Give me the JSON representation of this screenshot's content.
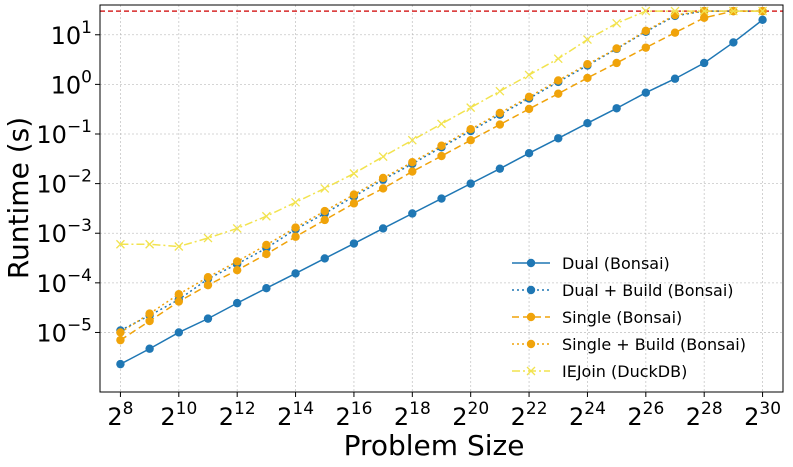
{
  "chart_data": {
    "type": "line",
    "title": "",
    "xlabel": "Problem Size",
    "ylabel": "Runtime (s)",
    "x_scale": "log2",
    "y_scale": "log10",
    "x_exponents": [
      8,
      9,
      10,
      11,
      12,
      13,
      14,
      15,
      16,
      17,
      18,
      19,
      20,
      21,
      22,
      23,
      24,
      25,
      26,
      27,
      28,
      29,
      30
    ],
    "xlim_exp": [
      7.3,
      30.7
    ],
    "ylim_exp": [
      -6.2,
      1.6
    ],
    "x_ticks": [
      {
        "exp": 8,
        "base": "2",
        "sup": "8"
      },
      {
        "exp": 10,
        "base": "2",
        "sup": "10"
      },
      {
        "exp": 12,
        "base": "2",
        "sup": "12"
      },
      {
        "exp": 14,
        "base": "2",
        "sup": "14"
      },
      {
        "exp": 16,
        "base": "2",
        "sup": "16"
      },
      {
        "exp": 18,
        "base": "2",
        "sup": "18"
      },
      {
        "exp": 20,
        "base": "2",
        "sup": "20"
      },
      {
        "exp": 22,
        "base": "2",
        "sup": "22"
      },
      {
        "exp": 24,
        "base": "2",
        "sup": "24"
      },
      {
        "exp": 26,
        "base": "2",
        "sup": "26"
      },
      {
        "exp": 28,
        "base": "2",
        "sup": "28"
      },
      {
        "exp": 30,
        "base": "2",
        "sup": "30"
      }
    ],
    "y_ticks": [
      {
        "exp": -5,
        "base": "10",
        "sup": "−5"
      },
      {
        "exp": -4,
        "base": "10",
        "sup": "−4"
      },
      {
        "exp": -3,
        "base": "10",
        "sup": "−3"
      },
      {
        "exp": -2,
        "base": "10",
        "sup": "−2"
      },
      {
        "exp": -1,
        "base": "10",
        "sup": "−1"
      },
      {
        "exp": 0,
        "base": "10",
        "sup": "0"
      },
      {
        "exp": 1,
        "base": "10",
        "sup": "1"
      }
    ],
    "grid": true,
    "timeout_line": {
      "value": 30,
      "color": "#d62728",
      "style": "dashed"
    },
    "legend_position": "lower-right",
    "series": [
      {
        "name": "Dual (Bonsai)",
        "color": "#1f77b4",
        "line_style": "solid",
        "marker": "circle",
        "values": [
          2.3e-06,
          4.7e-06,
          1e-05,
          1.9e-05,
          3.9e-05,
          7.8e-05,
          0.000155,
          0.00031,
          0.00062,
          0.00125,
          0.0025,
          0.005,
          0.01,
          0.02,
          0.041,
          0.082,
          0.165,
          0.33,
          0.68,
          1.3,
          2.7,
          7.0,
          20
        ]
      },
      {
        "name": "Dual + Build (Bonsai)",
        "color": "#1f77b4",
        "line_style": "dotted",
        "marker": "circle",
        "values": [
          1.1e-05,
          2.2e-05,
          4.6e-05,
          0.00012,
          0.00024,
          0.0005,
          0.0012,
          0.0025,
          0.0055,
          0.012,
          0.025,
          0.054,
          0.115,
          0.245,
          0.52,
          1.12,
          2.4,
          5.2,
          11.5,
          24,
          30,
          30,
          30
        ]
      },
      {
        "name": "Single (Bonsai)",
        "color": "#f0a30a",
        "line_style": "dashed",
        "marker": "circle",
        "values": [
          7e-06,
          1.7e-05,
          4.2e-05,
          9e-05,
          0.00018,
          0.00038,
          0.00085,
          0.00185,
          0.004,
          0.008,
          0.0175,
          0.036,
          0.075,
          0.155,
          0.32,
          0.65,
          1.35,
          2.7,
          5.5,
          11,
          22,
          30,
          30
        ]
      },
      {
        "name": "Single + Build (Bonsai)",
        "color": "#f0a30a",
        "line_style": "dotted",
        "marker": "circle",
        "values": [
          1e-05,
          2.4e-05,
          5.9e-05,
          0.00013,
          0.00027,
          0.00058,
          0.0013,
          0.0028,
          0.006,
          0.013,
          0.027,
          0.058,
          0.125,
          0.265,
          0.56,
          1.2,
          2.55,
          5.3,
          12,
          25,
          30,
          30,
          30
        ]
      },
      {
        "name": "IEJoin (DuckDB)",
        "color": "#f2e34f",
        "line_style": "dashdot",
        "marker": "x",
        "values": [
          0.0006,
          0.0006,
          0.00054,
          0.0008,
          0.00125,
          0.0022,
          0.0042,
          0.008,
          0.016,
          0.035,
          0.075,
          0.16,
          0.34,
          0.73,
          1.55,
          3.3,
          8.0,
          17,
          30,
          30,
          30,
          30,
          30
        ]
      }
    ]
  }
}
